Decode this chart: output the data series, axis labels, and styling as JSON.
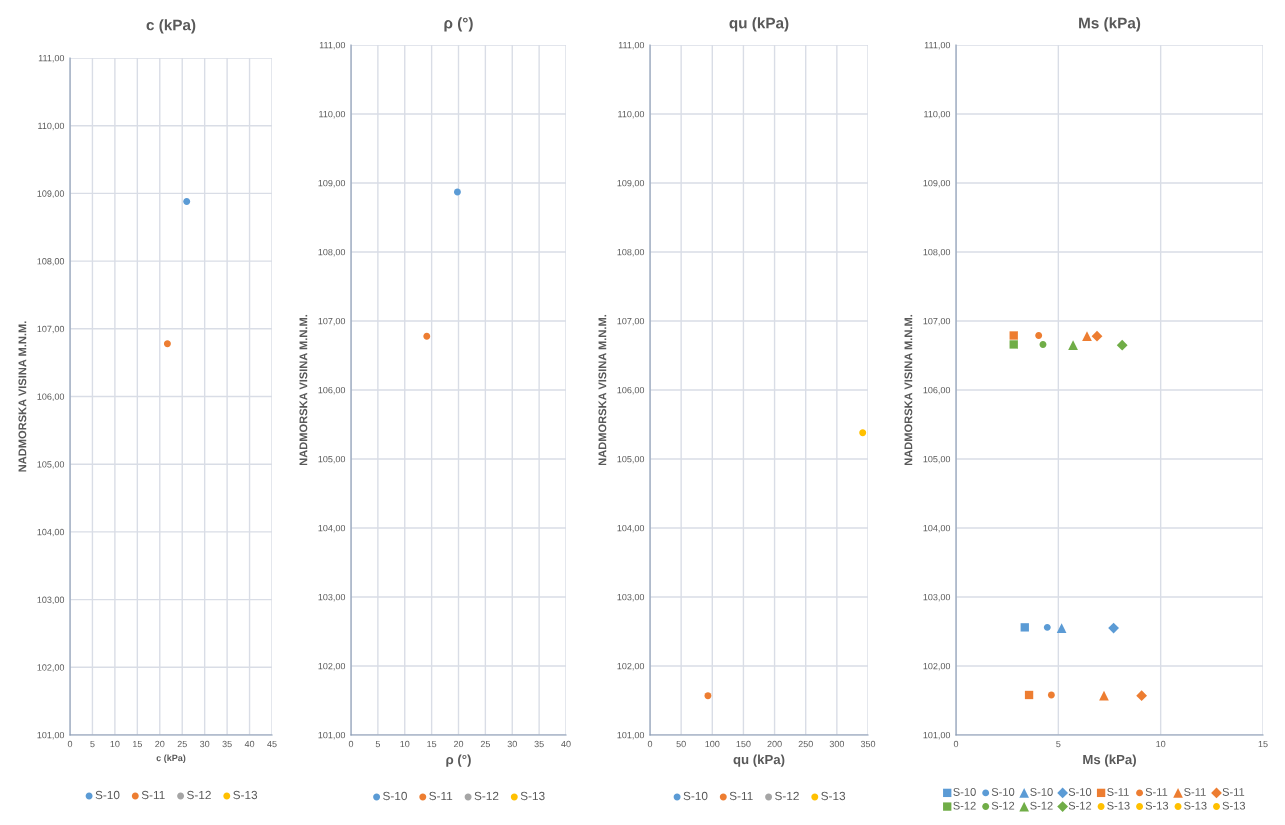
{
  "chart_data": [
    {
      "type": "scatter",
      "title": "c (kPa)",
      "xlabel": "c (kPa)",
      "ylabel": "NADMORSKA VISINA M.N.M.",
      "xlim": [
        0,
        45
      ],
      "xticks": [
        0,
        5,
        10,
        15,
        20,
        25,
        30,
        35,
        40,
        45
      ],
      "ylim": [
        101,
        111
      ],
      "yticks": [
        {
          "value": 101,
          "label": "101,00"
        },
        {
          "value": 102,
          "label": "102,00"
        },
        {
          "value": 103,
          "label": "103,00"
        },
        {
          "value": 104,
          "label": "104,00"
        },
        {
          "value": 105,
          "label": "105,00"
        },
        {
          "value": 106,
          "label": "106,00"
        },
        {
          "value": 107,
          "label": "107,00"
        },
        {
          "value": 108,
          "label": "108,00"
        },
        {
          "value": 109,
          "label": "109,00"
        },
        {
          "value": 110,
          "label": "110,00"
        },
        {
          "value": 111,
          "label": "111,00"
        }
      ],
      "grid": true,
      "legend": "bottom",
      "marker": "circle",
      "series": [
        {
          "name": "S-10",
          "color": "#5b9bd5",
          "x": [
            26.0
          ],
          "values": [
            108.88
          ]
        },
        {
          "name": "S-11",
          "color": "#ed7d31",
          "x": [
            21.7
          ],
          "values": [
            106.78
          ]
        },
        {
          "name": "S-12",
          "color": "#a5a5a5",
          "x": [
            null
          ],
          "values": [
            null
          ]
        },
        {
          "name": "S-13",
          "color": "#ffc000",
          "x": [
            null
          ],
          "values": [
            null
          ]
        }
      ]
    },
    {
      "type": "scatter",
      "title": "ρ (°)",
      "xlabel": "ρ (°)",
      "ylabel": "NADMORSKA VISINA M.N.M.",
      "xlim": [
        0,
        40
      ],
      "xticks": [
        0,
        5,
        10,
        15,
        20,
        25,
        30,
        35,
        40
      ],
      "ylim": [
        101,
        111
      ],
      "yticks": [
        {
          "value": 101,
          "label": "101,00"
        },
        {
          "value": 102,
          "label": "102,00"
        },
        {
          "value": 103,
          "label": "103,00"
        },
        {
          "value": 104,
          "label": "104,00"
        },
        {
          "value": 105,
          "label": "105,00"
        },
        {
          "value": 106,
          "label": "106,00"
        },
        {
          "value": 107,
          "label": "107,00"
        },
        {
          "value": 108,
          "label": "108,00"
        },
        {
          "value": 109,
          "label": "109,00"
        },
        {
          "value": 110,
          "label": "110,00"
        },
        {
          "value": 111,
          "label": "111,00"
        }
      ],
      "grid": true,
      "legend": "bottom",
      "marker": "circle",
      "series": [
        {
          "name": "S-10",
          "color": "#5b9bd5",
          "x": [
            19.8
          ],
          "values": [
            108.87
          ]
        },
        {
          "name": "S-11",
          "color": "#ed7d31",
          "x": [
            14.1
          ],
          "values": [
            106.78
          ]
        },
        {
          "name": "S-12",
          "color": "#a5a5a5",
          "x": [
            null
          ],
          "values": [
            null
          ]
        },
        {
          "name": "S-13",
          "color": "#ffc000",
          "x": [
            null
          ],
          "values": [
            null
          ]
        }
      ]
    },
    {
      "type": "scatter",
      "title": "qu (kPa)",
      "xlabel": "qu (kPa)",
      "ylabel": "NADMORSKA VISINA M.N.M.",
      "xlim": [
        0,
        350
      ],
      "xticks": [
        0,
        50,
        100,
        150,
        200,
        250,
        300,
        350
      ],
      "ylim": [
        101,
        111
      ],
      "yticks": [
        {
          "value": 101,
          "label": "101,00"
        },
        {
          "value": 102,
          "label": "102,00"
        },
        {
          "value": 103,
          "label": "103,00"
        },
        {
          "value": 104,
          "label": "104,00"
        },
        {
          "value": 105,
          "label": "105,00"
        },
        {
          "value": 106,
          "label": "106,00"
        },
        {
          "value": 107,
          "label": "107,00"
        },
        {
          "value": 108,
          "label": "108,00"
        },
        {
          "value": 109,
          "label": "109,00"
        },
        {
          "value": 110,
          "label": "110,00"
        },
        {
          "value": 111,
          "label": "111,00"
        }
      ],
      "grid": true,
      "legend": "bottom",
      "marker": "circle",
      "series": [
        {
          "name": "S-10",
          "color": "#5b9bd5",
          "x": [
            null
          ],
          "values": [
            null
          ]
        },
        {
          "name": "S-11",
          "color": "#ed7d31",
          "x": [
            93
          ],
          "values": [
            101.57
          ]
        },
        {
          "name": "S-12",
          "color": "#a5a5a5",
          "x": [
            null
          ],
          "values": [
            null
          ]
        },
        {
          "name": "S-13",
          "color": "#ffc000",
          "x": [
            341.5
          ],
          "values": [
            105.38
          ]
        }
      ]
    },
    {
      "type": "scatter",
      "title": "Ms (kPa)",
      "xlabel": "Ms (kPa)",
      "ylabel": "NADMORSKA VISINA M.N.M.",
      "xlim": [
        0,
        15
      ],
      "xticks": [
        0,
        5,
        10,
        15
      ],
      "ylim": [
        101,
        111
      ],
      "yticks": [
        {
          "value": 101,
          "label": "101,00"
        },
        {
          "value": 102,
          "label": "102,00"
        },
        {
          "value": 103,
          "label": "103,00"
        },
        {
          "value": 104,
          "label": "104,00"
        },
        {
          "value": 105,
          "label": "105,00"
        },
        {
          "value": 106,
          "label": "106,00"
        },
        {
          "value": 107,
          "label": "107,00"
        },
        {
          "value": 108,
          "label": "108,00"
        },
        {
          "value": 109,
          "label": "109,00"
        },
        {
          "value": 110,
          "label": "110,00"
        },
        {
          "value": 111,
          "label": "111,00"
        }
      ],
      "grid": true,
      "legend": "bottom",
      "series": [
        {
          "name": "S-10",
          "color": "#5b9bd5",
          "marker": "square",
          "x": [
            3.36
          ],
          "values": [
            102.56
          ]
        },
        {
          "name": "S-10",
          "color": "#5b9bd5",
          "marker": "circle",
          "x": [
            4.46
          ],
          "values": [
            102.56
          ]
        },
        {
          "name": "S-10",
          "color": "#5b9bd5",
          "marker": "triangle",
          "x": [
            5.16
          ],
          "values": [
            102.55
          ]
        },
        {
          "name": "S-10",
          "color": "#5b9bd5",
          "marker": "diamond",
          "x": [
            7.7
          ],
          "values": [
            102.55
          ]
        },
        {
          "name": "S-11",
          "color": "#ed7d31",
          "marker": "square",
          "x": [
            2.82,
            3.57
          ],
          "values": [
            106.79,
            101.58
          ]
        },
        {
          "name": "S-11",
          "color": "#ed7d31",
          "marker": "circle",
          "x": [
            4.04,
            4.66
          ],
          "values": [
            106.79,
            101.58
          ]
        },
        {
          "name": "S-11",
          "color": "#ed7d31",
          "marker": "triangle",
          "x": [
            6.4,
            7.23
          ],
          "values": [
            106.78,
            101.57
          ]
        },
        {
          "name": "S-11",
          "color": "#ed7d31",
          "marker": "diamond",
          "x": [
            6.89,
            9.07
          ],
          "values": [
            106.78,
            101.57
          ]
        },
        {
          "name": "S-12",
          "color": "#70ad47",
          "marker": "square",
          "x": [
            2.82
          ],
          "values": [
            106.66
          ]
        },
        {
          "name": "S-12",
          "color": "#70ad47",
          "marker": "circle",
          "x": [
            4.25
          ],
          "values": [
            106.66
          ]
        },
        {
          "name": "S-12",
          "color": "#70ad47",
          "marker": "triangle",
          "x": [
            5.72
          ],
          "values": [
            106.65
          ]
        },
        {
          "name": "S-12",
          "color": "#70ad47",
          "marker": "diamond",
          "x": [
            8.12
          ],
          "values": [
            106.65
          ]
        },
        {
          "name": "S-13",
          "color": "#ffc000",
          "marker": "circle",
          "x": [
            null
          ],
          "values": [
            null
          ]
        },
        {
          "name": "S-13",
          "color": "#ffc000",
          "marker": "circle",
          "x": [
            null
          ],
          "values": [
            null
          ]
        },
        {
          "name": "S-13",
          "color": "#ffc000",
          "marker": "circle",
          "x": [
            null
          ],
          "values": [
            null
          ]
        },
        {
          "name": "S-13",
          "color": "#ffc000",
          "marker": "circle",
          "x": [
            null
          ],
          "values": [
            null
          ]
        }
      ]
    }
  ]
}
